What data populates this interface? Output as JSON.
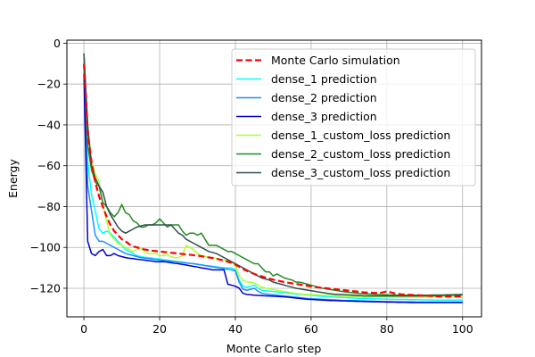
{
  "chart_data": {
    "type": "line",
    "title": "",
    "xlabel": "Monte Carlo step",
    "ylabel": "Energy",
    "xlim": [
      -4.5,
      105
    ],
    "ylim": [
      -134,
      1.5
    ],
    "xticks": [
      0,
      20,
      40,
      60,
      80,
      100
    ],
    "yticks": [
      0,
      -20,
      -40,
      -60,
      -80,
      -100,
      -120
    ],
    "xtick_labels": [
      "0",
      "20",
      "40",
      "60",
      "80",
      "100"
    ],
    "ytick_labels": [
      "0",
      "−20",
      "−40",
      "−60",
      "−80",
      "−100",
      "−120"
    ],
    "grid": true,
    "legend_position": "top-right",
    "x": [
      0,
      1,
      2,
      3,
      4,
      5,
      6,
      7,
      8,
      9,
      10,
      11,
      12,
      13,
      14,
      15,
      16,
      17,
      18,
      19,
      20,
      21,
      22,
      23,
      24,
      25,
      26,
      27,
      28,
      29,
      30,
      31,
      32,
      33,
      34,
      35,
      36,
      37,
      38,
      39,
      40,
      41,
      42,
      43,
      44,
      45,
      46,
      47,
      48,
      49,
      50,
      51,
      52,
      53,
      54,
      55,
      56,
      57,
      58,
      59,
      60,
      61,
      62,
      63,
      64,
      65,
      66,
      67,
      68,
      69,
      70,
      71,
      72,
      73,
      74,
      75,
      76,
      77,
      78,
      79,
      80,
      81,
      82,
      83,
      84,
      85,
      86,
      87,
      88,
      89,
      90,
      91,
      92,
      93,
      94,
      95,
      96,
      97,
      98,
      99,
      100
    ],
    "series": [
      {
        "name": "Monte Carlo simulation",
        "color": "#ff0000",
        "dashed": true,
        "values": [
          -10,
          -44,
          -58,
          -68,
          -75,
          -80,
          -85,
          -89,
          -92,
          -94,
          -96,
          -97,
          -98.5,
          -99.5,
          -100,
          -100.5,
          -101,
          -101.3,
          -101.6,
          -101.8,
          -102,
          -102.2,
          -102.4,
          -102.6,
          -102.8,
          -103,
          -103.2,
          -103.4,
          -103.6,
          -103.8,
          -104,
          -104.3,
          -104.6,
          -104.9,
          -105.2,
          -105.6,
          -106,
          -106.5,
          -107,
          -107.6,
          -108.5,
          -109.5,
          -110.5,
          -111.5,
          -112.3,
          -113,
          -113.6,
          -114.2,
          -114.8,
          -115.3,
          -115.8,
          -116.2,
          -116.6,
          -117,
          -117.3,
          -117.6,
          -117.9,
          -118.2,
          -118.5,
          -118.8,
          -119.1,
          -119.4,
          -119.6,
          -119.8,
          -120,
          -120.2,
          -120.4,
          -120.6,
          -120.8,
          -121,
          -121.2,
          -121.4,
          -121.6,
          -121.8,
          -122,
          -122.1,
          -122.2,
          -122.3,
          -122.4,
          -122,
          -121.5,
          -122,
          -122.5,
          -122.8,
          -123,
          -123.1,
          -123.2,
          -123.3,
          -123.4,
          -123.5,
          -123.6,
          -123.7,
          -123.8,
          -123.9,
          -124,
          -124,
          -124,
          -124,
          -124,
          -124,
          -124
        ]
      },
      {
        "name": "dense_1 prediction",
        "color": "#00ffff",
        "dashed": false,
        "values": [
          -15,
          -58,
          -74,
          -82,
          -91,
          -93,
          -92,
          -93,
          -95,
          -97,
          -99,
          -101,
          -102,
          -103,
          -104,
          -104.5,
          -104.8,
          -105,
          -105.2,
          -105.5,
          -105.7,
          -106,
          -106.2,
          -106.5,
          -106.8,
          -107,
          -107.2,
          -107.5,
          -107.8,
          -108,
          -108.2,
          -108.5,
          -108.8,
          -109,
          -109.2,
          -109.5,
          -109.8,
          -110,
          -110,
          -110,
          -111,
          -116,
          -119,
          -119.5,
          -119,
          -118.5,
          -120,
          -121,
          -121.2,
          -121.4,
          -121.6,
          -121.8,
          -122,
          -122.2,
          -122.4,
          -122.6,
          -122.8,
          -123,
          -123.1,
          -123.2,
          -123.4,
          -123.6,
          -123.8,
          -124,
          -124.1,
          -124.2,
          -124.3,
          -124.4,
          -124.5,
          -124.6,
          -124.7,
          -124.8,
          -124.9,
          -125,
          -125,
          -125,
          -125.1,
          -125.2,
          -125.2,
          -125.3,
          -125.3,
          -125.4,
          -125.4,
          -125.5,
          -125.5,
          -125.5,
          -125.6,
          -125.6,
          -125.6,
          -125.7,
          -125.7,
          -125.7,
          -125.8,
          -125.8,
          -125.8,
          -125.8,
          -125.8,
          -125.8,
          -125.8,
          -125.8,
          -125.8
        ]
      },
      {
        "name": "dense_2 prediction",
        "color": "#1e8fff",
        "dashed": false,
        "values": [
          -12,
          -70,
          -82,
          -94,
          -97,
          -97,
          -98,
          -99,
          -100,
          -101,
          -102,
          -103,
          -103.5,
          -104,
          -104.5,
          -105,
          -105.2,
          -105.5,
          -105.7,
          -106,
          -106.2,
          -106.4,
          -106.6,
          -106.8,
          -107,
          -107.2,
          -107.4,
          -107.6,
          -107.8,
          -108,
          -108.3,
          -108.6,
          -108.9,
          -109.2,
          -109.5,
          -109.8,
          -110.1,
          -110.4,
          -110.7,
          -111,
          -111.5,
          -117,
          -120.5,
          -121,
          -120.5,
          -120,
          -121.5,
          -122.5,
          -122.8,
          -123,
          -123.2,
          -123.4,
          -123.6,
          -123.8,
          -124,
          -124.2,
          -124.4,
          -124.6,
          -124.8,
          -125,
          -125.1,
          -125.2,
          -125.3,
          -125.4,
          -125.5,
          -125.6,
          -125.7,
          -125.8,
          -125.9,
          -126,
          -126,
          -126,
          -126.1,
          -126.2,
          -126.2,
          -126.3,
          -126.3,
          -126.4,
          -126.4,
          -126.5,
          -126.5,
          -126.5,
          -126.6,
          -126.6,
          -126.6,
          -126.7,
          -126.7,
          -126.7,
          -126.8,
          -126.8,
          -126.8,
          -126.8,
          -126.8,
          -126.8,
          -126.8,
          -126.8,
          -126.8,
          -126.8,
          -126.8,
          -126.8,
          -126.8
        ]
      },
      {
        "name": "dense_3 prediction",
        "color": "#0000cd",
        "dashed": false,
        "values": [
          -15,
          -97,
          -103,
          -104,
          -102,
          -101,
          -104,
          -104,
          -103,
          -104,
          -104.5,
          -105,
          -105.3,
          -105.5,
          -105.8,
          -106,
          -106.2,
          -106.5,
          -106.7,
          -107,
          -107,
          -107,
          -107.2,
          -107.5,
          -107.8,
          -108,
          -108.3,
          -108.6,
          -109,
          -109.3,
          -109.6,
          -110,
          -110.3,
          -110.6,
          -111,
          -111,
          -111,
          -111,
          -118,
          -118.5,
          -119,
          -120,
          -122.5,
          -123,
          -123.2,
          -123.4,
          -123.5,
          -123.6,
          -123.7,
          -123.8,
          -123.9,
          -124,
          -124.1,
          -124.2,
          -124.4,
          -124.6,
          -124.8,
          -125,
          -125.2,
          -125.4,
          -125.5,
          -125.6,
          -125.7,
          -125.8,
          -125.9,
          -126,
          -126,
          -126.1,
          -126.2,
          -126.2,
          -126.3,
          -126.3,
          -126.4,
          -126.4,
          -126.5,
          -126.5,
          -126.6,
          -126.6,
          -126.7,
          -126.7,
          -126.8,
          -126.8,
          -126.8,
          -126.9,
          -126.9,
          -126.9,
          -127,
          -127,
          -127,
          -127,
          -127,
          -127,
          -127,
          -127,
          -127,
          -127,
          -127,
          -127,
          -127,
          -127,
          -127
        ]
      },
      {
        "name": "dense_1_custom_loss prediction",
        "color": "#adff2f",
        "dashed": false,
        "values": [
          -5,
          -40,
          -58,
          -64,
          -68,
          -79,
          -87,
          -94,
          -96,
          -98,
          -99,
          -100,
          -101,
          -102,
          -101,
          -100.5,
          -102,
          -103,
          -103,
          -103,
          -104,
          -104,
          -103.5,
          -104.5,
          -105,
          -105,
          -104,
          -99,
          -100,
          -101,
          -103,
          -104,
          -104.5,
          -104.8,
          -105.1,
          -105.4,
          -105.8,
          -106.2,
          -106.8,
          -107.5,
          -108.5,
          -114,
          -116,
          -117,
          -117,
          -117.5,
          -118.5,
          -119.5,
          -120,
          -120.3,
          -120.6,
          -121,
          -121.3,
          -121.6,
          -121.9,
          -122.2,
          -122.5,
          -122.7,
          -122.9,
          -123,
          -123.1,
          -123.2,
          -123.3,
          -123.4,
          -123.5,
          -123.6,
          -123.7,
          -123.8,
          -123.9,
          -124,
          -124,
          -124,
          -124.1,
          -124.1,
          -124.2,
          -124.2,
          -124.2,
          -124.3,
          -124.3,
          -124.3,
          -124.3,
          -124.4,
          -124.4,
          -124.4,
          -124.4,
          -124.4,
          -124.4,
          -124.4,
          -124.4,
          -124.4,
          -124.4,
          -124.4,
          -124.4,
          -124.4,
          -124.4,
          -124.4,
          -124.4,
          -124.4,
          -124.4,
          -124.4,
          -124.4
        ]
      },
      {
        "name": "dense_2_custom_loss prediction",
        "color": "#228b22",
        "dashed": false,
        "values": [
          -5,
          -50,
          -62,
          -68,
          -70,
          -78,
          -80,
          -83,
          -85,
          -83,
          -79,
          -83,
          -84,
          -87,
          -88,
          -90,
          -90,
          -89,
          -89,
          -88,
          -86,
          -88,
          -90,
          -89,
          -89,
          -89,
          -92,
          -94,
          -93,
          -93,
          -94,
          -93,
          -96,
          -99,
          -99,
          -99,
          -100,
          -101,
          -102,
          -102,
          -103,
          -104,
          -105,
          -106,
          -107,
          -108,
          -108,
          -110,
          -112,
          -112,
          -114,
          -113,
          -114,
          -115,
          -115.5,
          -116,
          -117,
          -117,
          -117.5,
          -118,
          -118.5,
          -119,
          -119.5,
          -120,
          -120.3,
          -120.6,
          -120.9,
          -121.2,
          -121.5,
          -121.8,
          -122,
          -122.2,
          -122.4,
          -122.6,
          -122.7,
          -122.8,
          -122.9,
          -123,
          -123.1,
          -123.2,
          -123.2,
          -123.3,
          -123.3,
          -123.4,
          -123.4,
          -123.4,
          -123.4,
          -123.4,
          -123.4,
          -123.4,
          -123.4,
          -123.4,
          -123.3,
          -123.3,
          -123.3,
          -123.3,
          -123.2,
          -123.2,
          -123.1,
          -123.1,
          -123
        ]
      },
      {
        "name": "dense_3_custom_loss prediction",
        "color": "#2f4f4f",
        "dashed": false,
        "values": [
          -5,
          -40,
          -60,
          -66,
          -70,
          -73,
          -80,
          -84,
          -87,
          -90,
          -92,
          -93,
          -92,
          -91,
          -90,
          -89.5,
          -89,
          -89,
          -89,
          -89,
          -89,
          -89,
          -89,
          -89,
          -91,
          -93,
          -94,
          -96,
          -97,
          -98,
          -99,
          -100,
          -101,
          -102,
          -102.5,
          -103,
          -104,
          -105,
          -106,
          -107,
          -108,
          -109,
          -110,
          -111,
          -112,
          -113,
          -114,
          -115,
          -115.5,
          -116,
          -117,
          -117.5,
          -118,
          -118.5,
          -119,
          -119.5,
          -120,
          -120.3,
          -120.6,
          -120.9,
          -121.2,
          -121.5,
          -121.8,
          -122.1,
          -122.4,
          -122.7,
          -122.9,
          -123,
          -123.1,
          -123.2,
          -123.3,
          -123.4,
          -123.5,
          -123.6,
          -123.7,
          -123.7,
          -123.8,
          -123.8,
          -123.8,
          -123.8,
          -123.8,
          -123.8,
          -123.8,
          -123.8,
          -123.8,
          -123.8,
          -123.8,
          -123.8,
          -123.8,
          -123.8,
          -123.7,
          -123.7,
          -123.7,
          -123.6,
          -123.6,
          -123.5,
          -123.5,
          -123.4,
          -123.4,
          -123.3,
          -123.3
        ]
      }
    ]
  }
}
